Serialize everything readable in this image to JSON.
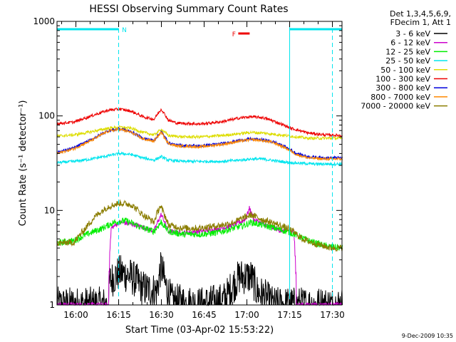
{
  "chart_data": {
    "type": "line",
    "title": "HESSI Observing Summary Count Rates",
    "xlabel": "Start Time (03-Apr-02 15:53:22)",
    "ylabel": "Count Rate (s⁻¹ detector⁻¹)",
    "yscale": "log",
    "ylim": [
      1,
      1000
    ],
    "xlim_minutes_after_start": [
      0,
      100
    ],
    "x_tick_labels": [
      "16:00",
      "16:15",
      "16:30",
      "16:45",
      "17:00",
      "17:15",
      "17:30"
    ],
    "x_tick_minutes": [
      6.63,
      21.63,
      36.63,
      51.63,
      66.63,
      81.63,
      96.63
    ],
    "y_tick_labels": [
      "1",
      "10",
      "100",
      "1000"
    ],
    "y_tick_values": [
      1,
      10,
      100,
      1000
    ],
    "legend_header": [
      "Det 1,3,4,5,6,9,",
      "FDecim 1, Att 1"
    ],
    "legend_position": "top-right-outside",
    "series": [
      {
        "name": "3 - 6 keV",
        "color": "#000000",
        "x": [
          0,
          18,
          18.5,
          22,
          26,
          30,
          35,
          36.5,
          38,
          40,
          50,
          58,
          60,
          64,
          68,
          70,
          76,
          84,
          100
        ],
        "y": [
          1,
          1,
          1.8,
          2.2,
          2.0,
          1.5,
          1.4,
          2.5,
          1.6,
          1.1,
          1.0,
          1.1,
          1.3,
          2.0,
          2.0,
          1.4,
          1.0,
          1,
          1
        ]
      },
      {
        "name": "6 - 12 keV",
        "color": "#cc00cc",
        "x": [
          0,
          18,
          19,
          22,
          28,
          34,
          36.5,
          39,
          44,
          50,
          58,
          62,
          66,
          67.5,
          69,
          73,
          79,
          83,
          84,
          100
        ],
        "y": [
          1,
          1,
          6.5,
          7.5,
          7.0,
          6.0,
          9,
          6.0,
          5.8,
          6.0,
          6.5,
          7.0,
          8,
          10.5,
          8,
          7.0,
          6.0,
          6.0,
          1,
          1
        ]
      },
      {
        "name": "12 - 25 keV",
        "color": "#00ee00",
        "x": [
          0,
          6,
          10,
          16,
          20,
          24,
          30,
          34,
          36.5,
          39,
          44,
          50,
          56,
          62,
          66,
          68,
          72,
          78,
          82,
          88,
          94,
          100
        ],
        "y": [
          4.5,
          4.8,
          5.5,
          6.5,
          7.5,
          7.8,
          6.5,
          6.0,
          7.5,
          6.0,
          5.6,
          5.6,
          5.8,
          6.5,
          7.0,
          7.5,
          7.0,
          6.3,
          5.8,
          4.8,
          4.2,
          4.0
        ]
      },
      {
        "name": "25 - 50 keV",
        "color": "#00e5ee",
        "x": [
          0,
          6,
          12,
          18,
          22,
          26,
          30,
          34,
          36.5,
          39,
          44,
          50,
          58,
          64,
          68,
          72,
          78,
          82,
          90,
          100
        ],
        "y": [
          32,
          33,
          35,
          38,
          40,
          39,
          36,
          34,
          37,
          34,
          33,
          33,
          33,
          34,
          35,
          35,
          33,
          32,
          31,
          31
        ]
      },
      {
        "name": "50 - 100 keV",
        "color": "#dddd00",
        "x": [
          0,
          6,
          12,
          18,
          22,
          26,
          30,
          34,
          36.5,
          39,
          44,
          50,
          58,
          64,
          68,
          72,
          78,
          82,
          88,
          100
        ],
        "y": [
          61,
          63,
          68,
          74,
          76,
          74,
          67,
          63,
          72,
          62,
          60,
          60,
          62,
          65,
          67,
          66,
          63,
          61,
          58,
          58
        ]
      },
      {
        "name": "100 - 300 keV",
        "color": "#ee0000",
        "x": [
          0,
          6,
          12,
          18,
          22,
          26,
          30,
          34,
          36.5,
          39,
          42,
          50,
          58,
          64,
          68,
          72,
          76,
          82,
          88,
          94,
          100
        ],
        "y": [
          83,
          86,
          100,
          115,
          118,
          112,
          98,
          92,
          118,
          90,
          84,
          82,
          87,
          95,
          98,
          96,
          88,
          74,
          66,
          63,
          62
        ]
      },
      {
        "name": "300 - 800 keV",
        "color": "#0000dd",
        "x": [
          0,
          6,
          12,
          18,
          22,
          26,
          30,
          34,
          36.5,
          39,
          42,
          50,
          58,
          64,
          68,
          72,
          76,
          80,
          84,
          88,
          94,
          100
        ],
        "y": [
          41,
          46,
          56,
          70,
          73,
          68,
          58,
          55,
          68,
          52,
          49,
          48,
          51,
          55,
          57,
          56,
          53,
          47,
          40,
          37,
          36,
          36
        ]
      },
      {
        "name": "800 - 7000 keV",
        "color": "#ff8800",
        "x": [
          0,
          6,
          12,
          18,
          22,
          26,
          30,
          34,
          36.5,
          39,
          42,
          50,
          58,
          64,
          68,
          72,
          76,
          80,
          84,
          88,
          94,
          100
        ],
        "y": [
          40,
          45,
          55,
          69,
          72,
          67,
          57,
          54,
          67,
          51,
          48,
          47,
          50,
          54,
          56,
          55,
          52,
          46,
          39,
          36,
          35,
          35
        ]
      },
      {
        "name": "7000 - 20000 keV",
        "color": "#8b7d00",
        "x": [
          0,
          6,
          10,
          14,
          18,
          22,
          26,
          30,
          34,
          36,
          37,
          39,
          44,
          50,
          58,
          62,
          66,
          68,
          72,
          78,
          82,
          86,
          90,
          96,
          100
        ],
        "y": [
          4.5,
          4.6,
          6.5,
          9,
          11,
          12,
          11.5,
          9,
          7.5,
          11,
          10,
          7.0,
          6.5,
          6.5,
          7.0,
          7.5,
          8.5,
          9,
          8.0,
          7.0,
          6.2,
          5.0,
          4.5,
          4.0,
          4.0
        ]
      }
    ],
    "attenuator_bar": {
      "color": "#00e5ee",
      "segments": [
        [
          0,
          21.63
        ],
        [
          81.63,
          100
        ]
      ],
      "labels": [
        "N",
        "F"
      ]
    },
    "flag_f": {
      "label": "F",
      "color": "#ee0000"
    },
    "vertical_markers_solid": [
      81.63
    ],
    "vertical_markers_dashed": [
      21.63,
      96.63
    ],
    "grid": false
  },
  "footer": {
    "date_stamp": "9-Dec-2009 10:35"
  }
}
